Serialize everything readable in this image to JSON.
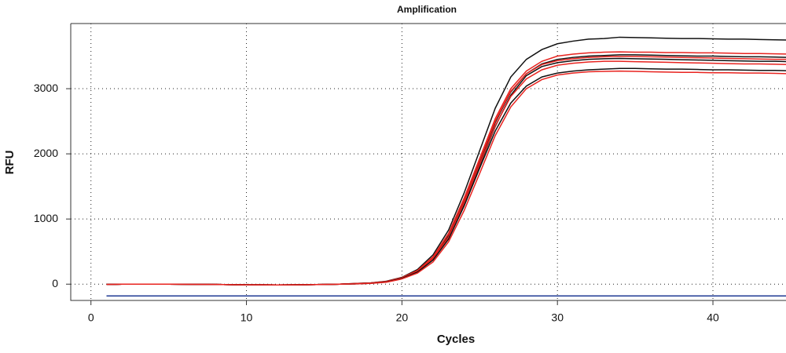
{
  "chart_data": {
    "type": "line",
    "title": "Amplification",
    "x_label": "Cycles",
    "y_label": "RFU",
    "x": [
      1,
      2,
      3,
      4,
      5,
      6,
      7,
      8,
      9,
      10,
      11,
      12,
      13,
      14,
      15,
      16,
      17,
      18,
      19,
      20,
      21,
      22,
      23,
      24,
      25,
      26,
      27,
      28,
      29,
      30,
      31,
      32,
      33,
      34,
      35,
      36,
      37,
      38,
      39,
      40,
      41,
      42,
      43,
      44,
      45
    ],
    "xlim": [
      -1.3,
      44.7
    ],
    "ylim": [
      -250,
      4000
    ],
    "xticks": [
      0,
      10,
      20,
      30,
      40
    ],
    "yticks": [
      0,
      1000,
      2000,
      3000
    ],
    "grid": true,
    "series": [
      {
        "color": "#111111",
        "values": [
          -5,
          0,
          0,
          0,
          0,
          -2,
          -3,
          -5,
          -8,
          -10,
          -10,
          -12,
          -10,
          -8,
          -5,
          0,
          10,
          20,
          45,
          105,
          225,
          450,
          830,
          1400,
          2050,
          2700,
          3180,
          3450,
          3600,
          3690,
          3730,
          3760,
          3770,
          3790,
          3785,
          3780,
          3775,
          3770,
          3770,
          3765,
          3760,
          3760,
          3755,
          3750,
          3745
        ]
      },
      {
        "color": "#e8231f",
        "values": [
          -5,
          0,
          0,
          0,
          0,
          -2,
          -3,
          -5,
          -8,
          -10,
          -10,
          -12,
          -10,
          -8,
          -5,
          0,
          10,
          20,
          40,
          100,
          210,
          420,
          780,
          1320,
          1930,
          2540,
          3000,
          3270,
          3420,
          3500,
          3530,
          3550,
          3560,
          3565,
          3560,
          3560,
          3555,
          3555,
          3550,
          3550,
          3545,
          3540,
          3540,
          3535,
          3530
        ]
      },
      {
        "color": "#111111",
        "values": [
          -5,
          0,
          0,
          0,
          0,
          -2,
          -3,
          -5,
          -8,
          -10,
          -10,
          -12,
          -10,
          -8,
          -5,
          0,
          8,
          18,
          38,
          95,
          200,
          400,
          750,
          1280,
          1880,
          2480,
          2950,
          3230,
          3380,
          3450,
          3480,
          3500,
          3510,
          3520,
          3520,
          3515,
          3510,
          3505,
          3500,
          3500,
          3495,
          3490,
          3490,
          3485,
          3480
        ]
      },
      {
        "color": "#e8231f",
        "values": [
          -5,
          0,
          0,
          0,
          0,
          -2,
          -3,
          -5,
          -8,
          -10,
          -10,
          -12,
          -10,
          -8,
          -5,
          0,
          8,
          18,
          40,
          98,
          205,
          410,
          770,
          1300,
          1900,
          2500,
          2960,
          3230,
          3370,
          3430,
          3460,
          3480,
          3490,
          3495,
          3495,
          3490,
          3485,
          3480,
          3475,
          3470,
          3465,
          3460,
          3455,
          3450,
          3450
        ]
      },
      {
        "color": "#111111",
        "values": [
          -5,
          0,
          0,
          0,
          0,
          -2,
          -3,
          -5,
          -8,
          -10,
          -10,
          -12,
          -10,
          -8,
          -5,
          0,
          5,
          15,
          35,
          90,
          190,
          380,
          700,
          1220,
          1820,
          2420,
          2900,
          3200,
          3340,
          3400,
          3430,
          3450,
          3460,
          3465,
          3460,
          3455,
          3450,
          3445,
          3440,
          3435,
          3430,
          3425,
          3420,
          3420,
          3415
        ]
      },
      {
        "color": "#e8231f",
        "values": [
          -5,
          0,
          0,
          0,
          0,
          -2,
          -3,
          -5,
          -8,
          -10,
          -10,
          -12,
          -10,
          -8,
          -5,
          0,
          6,
          16,
          36,
          92,
          195,
          390,
          720,
          1250,
          1840,
          2430,
          2880,
          3150,
          3290,
          3360,
          3390,
          3410,
          3420,
          3420,
          3415,
          3410,
          3405,
          3400,
          3395,
          3390,
          3385,
          3380,
          3380,
          3375,
          3370
        ]
      },
      {
        "color": "#111111",
        "values": [
          -5,
          0,
          0,
          0,
          0,
          -2,
          -3,
          -5,
          -8,
          -10,
          -10,
          -12,
          -10,
          -8,
          -5,
          0,
          5,
          14,
          33,
          88,
          185,
          370,
          690,
          1200,
          1780,
          2350,
          2780,
          3040,
          3180,
          3240,
          3270,
          3290,
          3300,
          3310,
          3310,
          3305,
          3300,
          3300,
          3295,
          3290,
          3290,
          3285,
          3280,
          3280,
          3275
        ]
      },
      {
        "color": "#e8231f",
        "values": [
          -5,
          0,
          0,
          0,
          0,
          -2,
          -3,
          -5,
          -8,
          -10,
          -10,
          -12,
          -10,
          -8,
          -5,
          0,
          5,
          12,
          30,
          80,
          170,
          340,
          650,
          1130,
          1700,
          2280,
          2720,
          3000,
          3140,
          3210,
          3240,
          3260,
          3265,
          3270,
          3265,
          3260,
          3255,
          3250,
          3250,
          3245,
          3245,
          3240,
          3240,
          3235,
          3230
        ]
      },
      {
        "color": "#1f3a93",
        "values": [
          -180,
          -180,
          -180,
          -180,
          -180,
          -180,
          -180,
          -180,
          -180,
          -180,
          -180,
          -180,
          -180,
          -180,
          -180,
          -180,
          -180,
          -180,
          -180,
          -180,
          -180,
          -180,
          -180,
          -180,
          -180,
          -180,
          -180,
          -180,
          -180,
          -180,
          -180,
          -180,
          -180,
          -180,
          -180,
          -180,
          -180,
          -180,
          -180,
          -180,
          -180,
          -180,
          -180,
          -180,
          -180
        ]
      }
    ]
  }
}
